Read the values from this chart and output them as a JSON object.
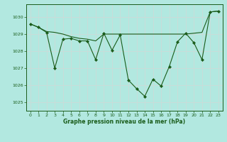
{
  "title": "Graphe pression niveau de la mer (hPa)",
  "background_color": "#b2e8e0",
  "grid_color": "#c8ddd9",
  "line_color": "#1a5c1a",
  "xlim": [
    -0.5,
    23.5
  ],
  "ylim": [
    1024.5,
    1030.75
  ],
  "yticks": [
    1025,
    1026,
    1027,
    1028,
    1029,
    1030
  ],
  "xticks": [
    0,
    1,
    2,
    3,
    4,
    5,
    6,
    7,
    8,
    9,
    10,
    11,
    12,
    13,
    14,
    15,
    16,
    17,
    18,
    19,
    20,
    21,
    22,
    23
  ],
  "series1": {
    "x": [
      0,
      1,
      2,
      3,
      4,
      5,
      6,
      7,
      8,
      9,
      10,
      11,
      12,
      13,
      14,
      15,
      16,
      17,
      18,
      19,
      20,
      21,
      22,
      23
    ],
    "y": [
      1029.6,
      1029.4,
      1029.1,
      1027.0,
      1028.7,
      1028.75,
      1028.6,
      1028.6,
      1027.5,
      1029.05,
      1028.05,
      1028.95,
      1026.3,
      1025.8,
      1025.35,
      1026.35,
      1025.95,
      1027.1,
      1028.55,
      1029.05,
      1028.5,
      1027.5,
      1030.3,
      1030.35
    ]
  },
  "series2": {
    "x": [
      0,
      1,
      2,
      3,
      4,
      5,
      6,
      7,
      8,
      9,
      10,
      11,
      12,
      13,
      14,
      15,
      16,
      17,
      18,
      19,
      20,
      21,
      22,
      23
    ],
    "y": [
      1029.6,
      1029.4,
      1029.15,
      1029.1,
      1029.0,
      1028.85,
      1028.75,
      1028.7,
      1028.6,
      1029.0,
      1029.0,
      1029.0,
      1029.0,
      1029.0,
      1029.0,
      1029.0,
      1029.0,
      1029.0,
      1029.0,
      1029.0,
      1029.05,
      1029.1,
      1030.3,
      1030.35
    ]
  }
}
